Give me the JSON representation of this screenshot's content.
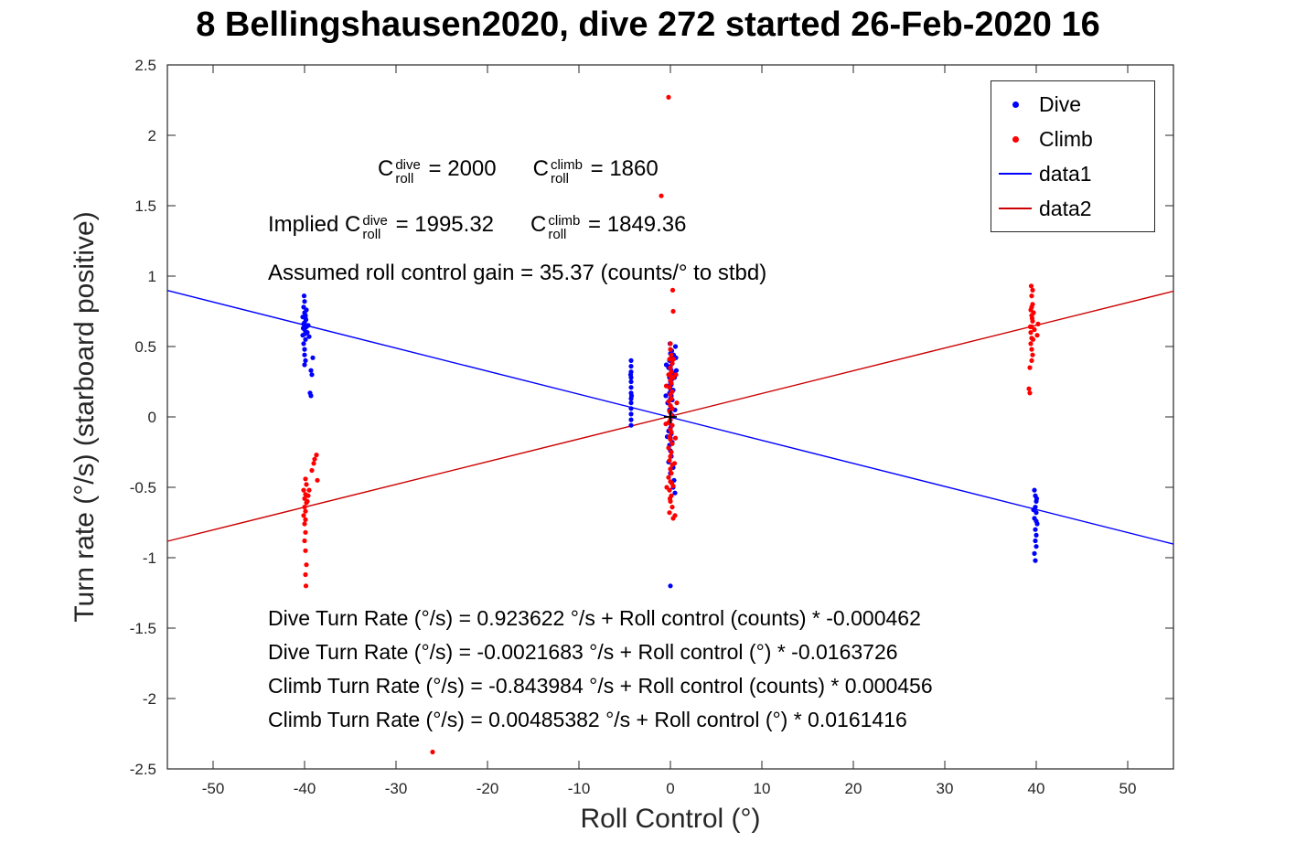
{
  "title": "8 Bellingshausen2020, dive 272 started 26-Feb-2020 16",
  "colors": {
    "dive": "#0000ff",
    "climb": "#ff0000",
    "line1": "#0000ff",
    "line2": "#cc0000",
    "axis": "#262626",
    "origin_marker": "#000000"
  },
  "annotations": {
    "coeffs": [
      {
        "text": "C"
      },
      {
        "stack": {
          "sup": "dive",
          "sub": "roll"
        }
      },
      {
        "text": " = 2000      "
      },
      {
        "text": "C"
      },
      {
        "stack": {
          "sup": "climb",
          "sub": "roll"
        }
      },
      {
        "text": " = 1860"
      }
    ],
    "implied": [
      {
        "text": "Implied C"
      },
      {
        "stack": {
          "sup": "dive",
          "sub": "roll"
        }
      },
      {
        "text": " = 1995.32      "
      },
      {
        "text": "C"
      },
      {
        "stack": {
          "sup": "climb",
          "sub": "roll"
        }
      },
      {
        "text": " = 1849.36"
      }
    ],
    "gain": [
      {
        "text": "Assumed roll control gain = 35.37 (counts/° to stbd)"
      }
    ]
  },
  "equations": [
    "Dive Turn Rate (°/s) = 0.923622 °/s + Roll control (counts) * -0.000462",
    "Dive Turn Rate (°/s) = -0.0021683 °/s + Roll control (°) * -0.0163726",
    "Climb Turn Rate (°/s) = -0.843984 °/s + Roll control (counts) * 0.000456",
    "Climb Turn Rate (°/s) = 0.00485382 °/s + Roll control (°) * 0.0161416"
  ],
  "chart_data": {
    "type": "scatter",
    "title": "8 Bellingshausen2020, dive 272 started 26-Feb-2020 16",
    "xlabel": "Roll Control (°)",
    "ylabel": "Turn rate (°/s) (starboard positive)",
    "xlim": [
      -55,
      55
    ],
    "ylim": [
      -2.5,
      2.5
    ],
    "xticks": [
      -50,
      -40,
      -30,
      -20,
      -10,
      0,
      10,
      20,
      30,
      40,
      50
    ],
    "yticks": [
      -2.5,
      -2,
      -1.5,
      -1,
      -0.5,
      0,
      0.5,
      1,
      1.5,
      2,
      2.5
    ],
    "grid": false,
    "legend": {
      "position": "top-right",
      "entries": [
        {
          "label": "Dive",
          "marker": "dot",
          "color": "#0000ff"
        },
        {
          "label": "Climb",
          "marker": "dot",
          "color": "#ff0000"
        },
        {
          "label": "data1",
          "marker": "line",
          "color": "#0000ff"
        },
        {
          "label": "data2",
          "marker": "line",
          "color": "#cc0000"
        }
      ]
    },
    "origin_marker": {
      "x": 0,
      "y": 0,
      "symbol": "+"
    },
    "series": [
      {
        "name": "Dive",
        "type": "scatter",
        "color": "#0000ff",
        "points": [
          [
            -40.0,
            0.62
          ],
          [
            -40.1,
            0.66
          ],
          [
            -39.9,
            0.7
          ],
          [
            -40.0,
            0.74
          ],
          [
            -39.8,
            0.64
          ],
          [
            -40.2,
            0.58
          ],
          [
            -39.9,
            0.55
          ],
          [
            -40.0,
            0.48
          ],
          [
            -40.1,
            0.52
          ],
          [
            -39.7,
            0.6
          ],
          [
            -40.0,
            0.67
          ],
          [
            -39.9,
            0.72
          ],
          [
            -40.1,
            0.78
          ],
          [
            -40.0,
            0.82
          ],
          [
            -39.8,
            0.76
          ],
          [
            -40.2,
            0.71
          ],
          [
            -39.6,
            0.65
          ],
          [
            -39.5,
            0.57
          ],
          [
            -40.0,
            0.44
          ],
          [
            -39.9,
            0.4
          ],
          [
            -39.3,
            0.33
          ],
          [
            -39.2,
            0.3
          ],
          [
            -39.4,
            0.17
          ],
          [
            -39.3,
            0.15
          ],
          [
            -40.05,
            0.86
          ],
          [
            -39.85,
            0.69
          ],
          [
            -40.15,
            0.63
          ],
          [
            -39.95,
            0.59
          ],
          [
            -40.0,
            0.37
          ],
          [
            -39.1,
            0.42
          ],
          [
            -4.3,
            0.4
          ],
          [
            -4.3,
            0.36
          ],
          [
            -4.3,
            0.32
          ],
          [
            -4.3,
            0.28
          ],
          [
            -4.3,
            0.25
          ],
          [
            -4.3,
            0.21
          ],
          [
            -4.3,
            0.17
          ],
          [
            -4.3,
            0.13
          ],
          [
            -4.3,
            0.1
          ],
          [
            -4.3,
            0.06
          ],
          [
            -4.3,
            0.02
          ],
          [
            -4.3,
            -0.02
          ],
          [
            -4.3,
            -0.06
          ],
          [
            -4.35,
            0.3
          ],
          [
            -4.25,
            0.15
          ],
          [
            0.0,
            0.45
          ],
          [
            0.1,
            0.42
          ],
          [
            -0.1,
            0.4
          ],
          [
            0.2,
            0.38
          ],
          [
            0.0,
            0.36
          ],
          [
            -0.2,
            0.35
          ],
          [
            0.1,
            0.33
          ],
          [
            0.3,
            0.31
          ],
          [
            0.0,
            0.3
          ],
          [
            -0.1,
            0.28
          ],
          [
            0.2,
            0.27
          ],
          [
            0.0,
            0.25
          ],
          [
            0.1,
            0.23
          ],
          [
            -0.2,
            0.22
          ],
          [
            0.0,
            0.2
          ],
          [
            0.3,
            0.19
          ],
          [
            -0.1,
            0.17
          ],
          [
            0.1,
            0.15
          ],
          [
            0.0,
            0.13
          ],
          [
            0.2,
            0.12
          ],
          [
            -0.3,
            0.1
          ],
          [
            0.0,
            0.08
          ],
          [
            0.1,
            0.06
          ],
          [
            -0.1,
            0.05
          ],
          [
            0.0,
            0.03
          ],
          [
            0.2,
            0.01
          ],
          [
            0.0,
            -0.02
          ],
          [
            -0.1,
            -0.04
          ],
          [
            0.1,
            -0.06
          ],
          [
            0.0,
            -0.08
          ],
          [
            -0.2,
            -0.1
          ],
          [
            0.1,
            -0.12
          ],
          [
            0.0,
            -0.15
          ],
          [
            0.2,
            -0.18
          ],
          [
            -0.1,
            -0.2
          ],
          [
            0.0,
            -0.24
          ],
          [
            0.1,
            -0.28
          ],
          [
            -0.2,
            -0.32
          ],
          [
            0.3,
            -0.36
          ],
          [
            0.0,
            -0.4
          ],
          [
            0.4,
            -0.45
          ],
          [
            0.3,
            -0.5
          ],
          [
            0.5,
            -0.54
          ],
          [
            0.0,
            -1.2
          ],
          [
            0.55,
            0.5
          ],
          [
            0.6,
            0.42
          ],
          [
            -0.45,
            0.37
          ],
          [
            0.45,
            0.28
          ],
          [
            -0.5,
            0.15
          ],
          [
            0.5,
            0.05
          ],
          [
            0.65,
            0.33
          ],
          [
            -0.35,
            -0.14
          ],
          [
            0.35,
            0.44
          ],
          [
            0.15,
            0.47
          ],
          [
            -0.05,
            0.52
          ],
          [
            39.8,
            -0.52
          ],
          [
            39.9,
            -0.56
          ],
          [
            40.0,
            -0.6
          ],
          [
            39.9,
            -0.64
          ],
          [
            40.0,
            -0.68
          ],
          [
            39.8,
            -0.72
          ],
          [
            40.1,
            -0.76
          ],
          [
            39.9,
            -0.8
          ],
          [
            40.0,
            -0.84
          ],
          [
            39.9,
            -0.88
          ],
          [
            40.0,
            -0.92
          ],
          [
            39.8,
            -0.97
          ],
          [
            39.9,
            -1.02
          ],
          [
            40.0,
            -0.74
          ],
          [
            39.7,
            -0.66
          ],
          [
            40.05,
            -0.58
          ]
        ]
      },
      {
        "name": "Climb",
        "type": "scatter",
        "color": "#ff0000",
        "points": [
          [
            -39.9,
            -0.55
          ],
          [
            -40.0,
            -0.58
          ],
          [
            -39.8,
            -0.61
          ],
          [
            -40.0,
            -0.64
          ],
          [
            -39.9,
            -0.67
          ],
          [
            -40.1,
            -0.7
          ],
          [
            -39.9,
            -0.73
          ],
          [
            -40.0,
            -0.76
          ],
          [
            -39.7,
            -0.6
          ],
          [
            -39.6,
            -0.56
          ],
          [
            -39.5,
            -0.52
          ],
          [
            -39.8,
            -0.48
          ],
          [
            -39.9,
            -0.44
          ],
          [
            -38.9,
            -0.3
          ],
          [
            -38.7,
            -0.27
          ],
          [
            -39.0,
            -0.33
          ],
          [
            -39.9,
            -0.82
          ],
          [
            -40.0,
            -0.88
          ],
          [
            -39.9,
            -0.95
          ],
          [
            -39.8,
            -1.05
          ],
          [
            -39.9,
            -1.12
          ],
          [
            -39.85,
            -1.2
          ],
          [
            -40.1,
            -0.52
          ],
          [
            -38.6,
            -0.45
          ],
          [
            -39.2,
            -0.38
          ],
          [
            0.0,
            0.48
          ],
          [
            0.1,
            0.44
          ],
          [
            -0.1,
            0.41
          ],
          [
            0.2,
            0.38
          ],
          [
            0.0,
            0.35
          ],
          [
            0.1,
            0.32
          ],
          [
            -0.2,
            0.3
          ],
          [
            0.3,
            0.28
          ],
          [
            0.0,
            0.26
          ],
          [
            0.1,
            0.24
          ],
          [
            -0.1,
            0.21
          ],
          [
            0.2,
            0.18
          ],
          [
            0.0,
            0.16
          ],
          [
            0.1,
            0.13
          ],
          [
            -0.2,
            0.11
          ],
          [
            0.0,
            0.08
          ],
          [
            0.2,
            0.06
          ],
          [
            -0.1,
            0.04
          ],
          [
            0.1,
            0.01
          ],
          [
            0.0,
            -0.02
          ],
          [
            -0.2,
            -0.04
          ],
          [
            0.2,
            -0.06
          ],
          [
            0.0,
            -0.09
          ],
          [
            0.1,
            -0.11
          ],
          [
            -0.1,
            -0.14
          ],
          [
            0.0,
            -0.16
          ],
          [
            0.2,
            -0.19
          ],
          [
            -0.2,
            -0.22
          ],
          [
            0.1,
            -0.25
          ],
          [
            0.0,
            -0.28
          ],
          [
            -0.1,
            -0.31
          ],
          [
            0.2,
            -0.34
          ],
          [
            0.0,
            -0.37
          ],
          [
            0.1,
            -0.4
          ],
          [
            -0.2,
            -0.43
          ],
          [
            0.0,
            -0.46
          ],
          [
            0.3,
            -0.49
          ],
          [
            -0.1,
            -0.52
          ],
          [
            0.1,
            -0.56
          ],
          [
            0.0,
            -0.6
          ],
          [
            0.2,
            -0.64
          ],
          [
            -0.1,
            -0.68
          ],
          [
            0.3,
            -0.72
          ],
          [
            0.5,
            -0.7
          ],
          [
            0.0,
            0.52
          ],
          [
            0.3,
            0.75
          ],
          [
            0.25,
            0.9
          ],
          [
            -0.2,
            2.27
          ],
          [
            -1.0,
            1.57
          ],
          [
            0.6,
            0.3
          ],
          [
            0.7,
            0.1
          ],
          [
            -0.45,
            0.22
          ],
          [
            -0.5,
            -0.05
          ],
          [
            0.55,
            -0.15
          ],
          [
            0.45,
            -0.33
          ],
          [
            -0.4,
            -0.5
          ],
          [
            0.35,
            0.41
          ],
          [
            0.05,
            0.29
          ],
          [
            -0.05,
            -0.58
          ],
          [
            0.15,
            -0.47
          ],
          [
            39.4,
            0.6
          ],
          [
            39.5,
            0.64
          ],
          [
            39.6,
            0.68
          ],
          [
            39.5,
            0.72
          ],
          [
            39.4,
            0.76
          ],
          [
            39.6,
            0.8
          ],
          [
            39.5,
            0.56
          ],
          [
            39.4,
            0.52
          ],
          [
            39.5,
            0.48
          ],
          [
            39.6,
            0.44
          ],
          [
            39.5,
            0.4
          ],
          [
            39.3,
            0.35
          ],
          [
            39.5,
            0.86
          ],
          [
            39.6,
            0.9
          ],
          [
            39.45,
            0.93
          ],
          [
            39.2,
            0.2
          ],
          [
            39.3,
            0.17
          ],
          [
            40.2,
            0.66
          ],
          [
            40.1,
            0.58
          ],
          [
            39.7,
            0.74
          ],
          [
            39.8,
            0.62
          ],
          [
            39.55,
            0.7
          ],
          [
            39.65,
            0.55
          ],
          [
            39.35,
            0.64
          ],
          [
            39.5,
            0.78
          ],
          [
            -26.0,
            -2.38
          ]
        ]
      },
      {
        "name": "data1",
        "type": "line",
        "color": "#0000ff",
        "points": [
          [
            -55,
            0.898
          ],
          [
            55,
            -0.903
          ]
        ]
      },
      {
        "name": "data2",
        "type": "line",
        "color": "#cc0000",
        "points": [
          [
            -55,
            -0.883
          ],
          [
            55,
            0.893
          ]
        ]
      }
    ]
  }
}
